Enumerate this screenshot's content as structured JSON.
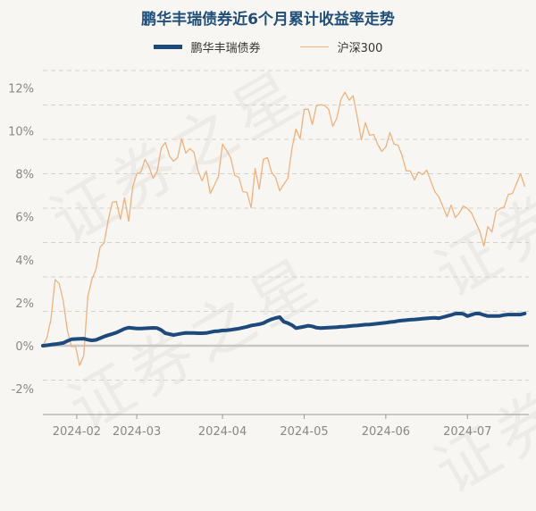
{
  "watermark": "证券之星",
  "chart_data": {
    "type": "line",
    "title": "鹏华丰瑞债券近6个月累计收益率走势",
    "xlabel": "",
    "ylabel": "",
    "ylim": [
      -3.2,
      12.8
    ],
    "y_ticks": [
      -2,
      0,
      2,
      4,
      6,
      8,
      10,
      12
    ],
    "y_tick_labels": [
      "-2%",
      "0%",
      "2%",
      "4%",
      "6%",
      "8%",
      "10%",
      "12%"
    ],
    "gridlines": [
      -3.2,
      -1.6,
      1.6,
      3.2,
      4.8,
      6.4,
      8.0,
      9.6,
      11.2,
      12.8
    ],
    "grid": true,
    "legend_position": "top-center",
    "x_count": 119,
    "x_ticks": [
      {
        "index": 8.3,
        "label": "2024-02"
      },
      {
        "index": 23,
        "label": "2024-03"
      },
      {
        "index": 44,
        "label": "2024-04"
      },
      {
        "index": 64,
        "label": "2024-05"
      },
      {
        "index": 84,
        "label": "2024-06"
      },
      {
        "index": 104,
        "label": "2024-07"
      }
    ],
    "series": [
      {
        "name": "鹏华丰瑞债券",
        "color": "#1d4a7c",
        "values": [
          0.0,
          0.02,
          0.05,
          0.07,
          0.1,
          0.13,
          0.22,
          0.3,
          0.31,
          0.32,
          0.33,
          0.28,
          0.25,
          0.27,
          0.35,
          0.43,
          0.49,
          0.55,
          0.61,
          0.7,
          0.79,
          0.84,
          0.82,
          0.8,
          0.8,
          0.81,
          0.82,
          0.83,
          0.82,
          0.73,
          0.58,
          0.54,
          0.5,
          0.53,
          0.57,
          0.6,
          0.59,
          0.59,
          0.58,
          0.58,
          0.59,
          0.63,
          0.67,
          0.68,
          0.71,
          0.72,
          0.74,
          0.77,
          0.8,
          0.84,
          0.88,
          0.94,
          0.97,
          1.0,
          1.05,
          1.15,
          1.23,
          1.29,
          1.33,
          1.12,
          1.05,
          0.96,
          0.82,
          0.85,
          0.89,
          0.93,
          0.9,
          0.84,
          0.82,
          0.83,
          0.84,
          0.85,
          0.86,
          0.88,
          0.89,
          0.91,
          0.93,
          0.94,
          0.96,
          0.98,
          0.99,
          1.01,
          1.03,
          1.05,
          1.07,
          1.1,
          1.12,
          1.15,
          1.17,
          1.19,
          1.21,
          1.22,
          1.24,
          1.26,
          1.27,
          1.29,
          1.3,
          1.28,
          1.33,
          1.38,
          1.43,
          1.49,
          1.5,
          1.48,
          1.38,
          1.44,
          1.5,
          1.49,
          1.43,
          1.38,
          1.38,
          1.38,
          1.39,
          1.43,
          1.45,
          1.45,
          1.45,
          1.45,
          1.5
        ]
      },
      {
        "name": "沪深300",
        "color": "#f0b27a",
        "values": [
          0.0,
          0.38,
          1.25,
          3.08,
          2.88,
          2.08,
          0.71,
          -0.04,
          -0.04,
          -0.92,
          -0.46,
          2.29,
          3.08,
          3.54,
          4.58,
          4.79,
          5.83,
          6.67,
          6.71,
          5.88,
          6.88,
          5.79,
          7.38,
          8.0,
          8.08,
          8.67,
          8.33,
          7.79,
          8.13,
          9.2,
          9.46,
          8.83,
          8.58,
          8.75,
          9.63,
          8.96,
          9.17,
          9.0,
          8.13,
          7.67,
          8.13,
          7.08,
          7.46,
          7.88,
          9.38,
          9.08,
          8.75,
          7.92,
          7.83,
          7.17,
          7.13,
          6.42,
          8.25,
          7.29,
          8.67,
          8.75,
          8.08,
          7.83,
          7.21,
          7.5,
          7.79,
          9.17,
          10.08,
          9.63,
          11.0,
          11.0,
          10.29,
          11.17,
          11.21,
          11.17,
          11.0,
          10.21,
          10.58,
          11.46,
          11.79,
          11.42,
          11.63,
          10.63,
          9.58,
          10.38,
          9.79,
          9.83,
          9.38,
          9.04,
          9.25,
          9.92,
          9.38,
          9.33,
          8.83,
          8.13,
          8.13,
          7.71,
          8.08,
          7.96,
          8.17,
          7.67,
          7.17,
          6.92,
          6.46,
          6.0,
          6.54,
          5.96,
          6.17,
          6.5,
          6.38,
          6.17,
          5.75,
          5.33,
          4.63,
          5.54,
          5.29,
          6.25,
          6.38,
          6.46,
          7.04,
          7.08,
          7.54,
          8.0,
          7.42
        ]
      }
    ]
  }
}
